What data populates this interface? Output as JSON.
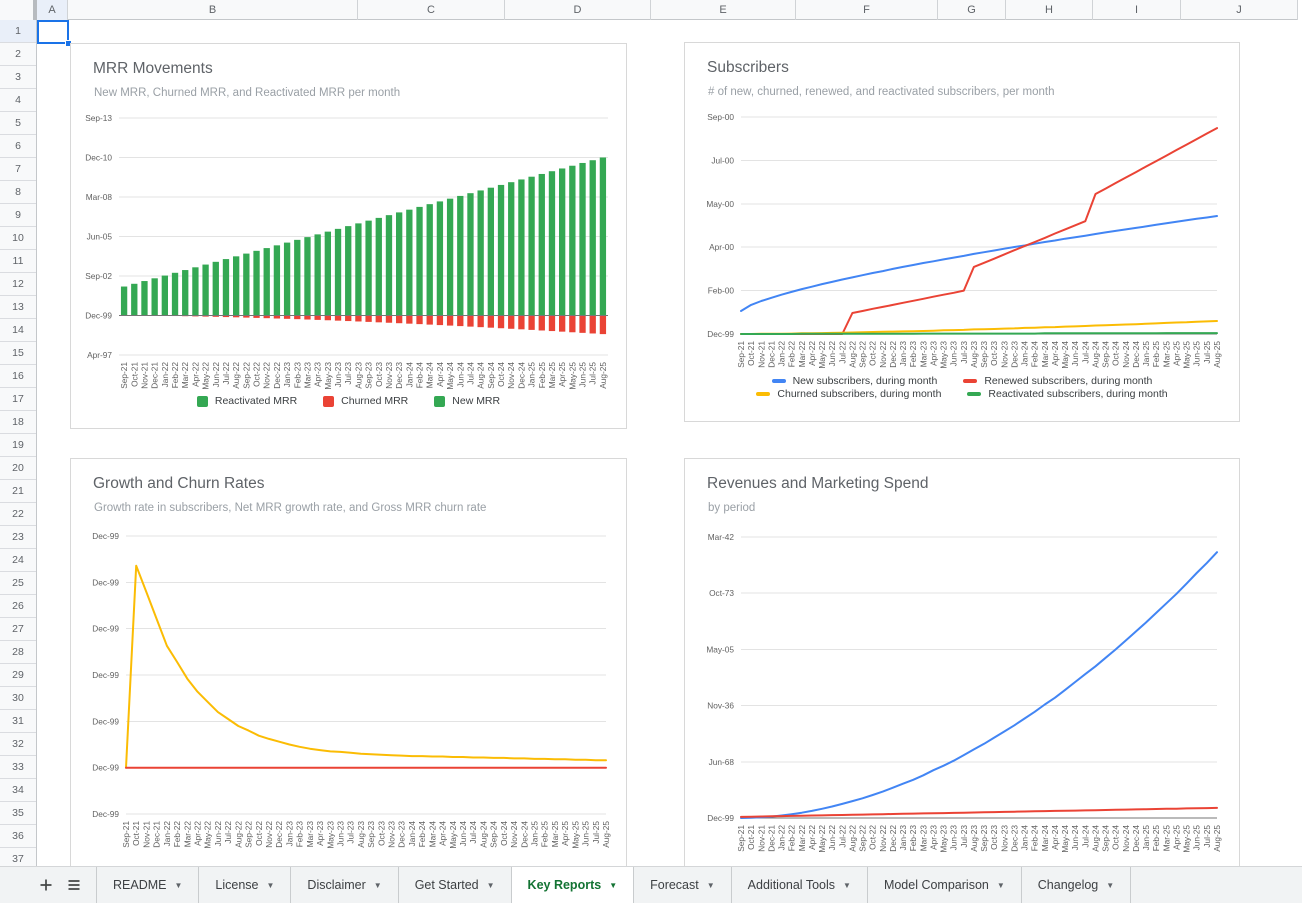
{
  "grid": {
    "column_headers": [
      "A",
      "B",
      "C",
      "D",
      "E",
      "F",
      "G",
      "H",
      "I",
      "J"
    ],
    "row_count": 37,
    "selected_cell": "A1"
  },
  "tab_bar": {
    "tabs": [
      {
        "label": "README",
        "active": false
      },
      {
        "label": "License",
        "active": false
      },
      {
        "label": "Disclaimer",
        "active": false
      },
      {
        "label": "Get Started",
        "active": false
      },
      {
        "label": "Key Reports",
        "active": true
      },
      {
        "label": "Forecast",
        "active": false
      },
      {
        "label": "Additional Tools",
        "active": false
      },
      {
        "label": "Model Comparison",
        "active": false
      },
      {
        "label": "Changelog",
        "active": false
      }
    ]
  },
  "colors": {
    "selection_blue": "#1a73e8",
    "series_blue": "#4285f4",
    "series_red": "#ea4335",
    "series_yellow": "#fbbc04",
    "series_green": "#34a853",
    "active_tab_green": "#137333"
  },
  "months": [
    "Sep-21",
    "Oct-21",
    "Nov-21",
    "Dec-21",
    "Jan-22",
    "Feb-22",
    "Mar-22",
    "Apr-22",
    "May-22",
    "Jun-22",
    "Jul-22",
    "Aug-22",
    "Sep-22",
    "Oct-22",
    "Nov-22",
    "Dec-22",
    "Jan-23",
    "Feb-23",
    "Mar-23",
    "Apr-23",
    "May-23",
    "Jun-23",
    "Jul-23",
    "Aug-23",
    "Sep-23",
    "Oct-23",
    "Nov-23",
    "Dec-23",
    "Jan-24",
    "Feb-24",
    "Mar-24",
    "Apr-24",
    "May-24",
    "Jun-24",
    "Jul-24",
    "Aug-24",
    "Sep-24",
    "Oct-24",
    "Nov-24",
    "Dec-24",
    "Jan-25",
    "Feb-25",
    "Mar-25",
    "Apr-25",
    "May-25",
    "Jun-25",
    "Jul-25",
    "Aug-25"
  ],
  "chart_data": [
    {
      "type": "bar",
      "stacked": true,
      "title": "MRR Movements",
      "subtitle": "New MRR, Churned MRR, and Reactivated MRR per month",
      "x_categories": "@months",
      "xlabel": "",
      "ylabel": "",
      "ylim": [
        -1800,
        9000
      ],
      "baseline_dark": true,
      "grid": true,
      "y_ticks": [
        {
          "label": "Sep-13",
          "value": 9000
        },
        {
          "label": "Dec-10",
          "value": 7200
        },
        {
          "label": "Mar-08",
          "value": 5400
        },
        {
          "label": "Jun-05",
          "value": 3600
        },
        {
          "label": "Sep-02",
          "value": 1800
        },
        {
          "label": "Dec-99",
          "value": 0
        },
        {
          "label": "Apr-97",
          "value": -1800
        }
      ],
      "series": [
        {
          "name": "Reactivated MRR",
          "color": "#34a853",
          "values": [
            0,
            0,
            0,
            0,
            0,
            0,
            0,
            0,
            0,
            0,
            0,
            0,
            0,
            0,
            0,
            0,
            0,
            0,
            0,
            0,
            0,
            0,
            0,
            0,
            0,
            0,
            0,
            0,
            0,
            0,
            0,
            0,
            0,
            0,
            0,
            0,
            0,
            0,
            0,
            0,
            0,
            0,
            0,
            0,
            0,
            0,
            0,
            0
          ]
        },
        {
          "name": "Churned MRR",
          "color": "#ea4335",
          "values": [
            0,
            -2,
            -5,
            -10,
            -17,
            -24,
            -32,
            -41,
            -50,
            -60,
            -72,
            -83,
            -96,
            -109,
            -122,
            -137,
            -152,
            -167,
            -183,
            -200,
            -217,
            -235,
            -253,
            -272,
            -291,
            -311,
            -330,
            -351,
            -372,
            -393,
            -415,
            -437,
            -460,
            -483,
            -507,
            -531,
            -555,
            -580,
            -605,
            -630,
            -656,
            -683,
            -709,
            -736,
            -764,
            -791,
            -819,
            -848
          ]
        },
        {
          "name": "New MRR",
          "color": "#34a853",
          "values": [
            1320,
            1445,
            1570,
            1695,
            1820,
            1946,
            2071,
            2196,
            2321,
            2446,
            2571,
            2696,
            2821,
            2947,
            3072,
            3197,
            3322,
            3447,
            3572,
            3697,
            3822,
            3948,
            4073,
            4198,
            4323,
            4448,
            4573,
            4698,
            4823,
            4949,
            5074,
            5199,
            5324,
            5449,
            5574,
            5699,
            5824,
            5950,
            6075,
            6200,
            6325,
            6450,
            6575,
            6700,
            6825,
            6951,
            7076,
            7200
          ]
        }
      ],
      "legend": {
        "visible": true,
        "position": "bottom",
        "swatch": "square",
        "rows": [
          [
            0,
            1,
            2
          ]
        ]
      }
    },
    {
      "type": "line",
      "title": "Subscribers",
      "subtitle": "# of new, churned, renewed, and reactivated subscribers, per month",
      "x_categories": "@months",
      "xlabel": "",
      "ylabel": "",
      "ylim": [
        0,
        1000
      ],
      "baseline_dark": true,
      "grid": true,
      "y_ticks": [
        {
          "label": "Sep-00",
          "value": 1000
        },
        {
          "label": "Jul-00",
          "value": 800
        },
        {
          "label": "May-00",
          "value": 600
        },
        {
          "label": "Apr-00",
          "value": 400
        },
        {
          "label": "Feb-00",
          "value": 200
        },
        {
          "label": "Dec-99",
          "value": 0
        }
      ],
      "series": [
        {
          "name": "New subscribers, during month",
          "color": "#4285f4",
          "values": [
            106,
            134,
            152,
            167,
            181,
            194,
            207,
            218,
            230,
            240,
            251,
            261,
            271,
            281,
            290,
            300,
            309,
            318,
            327,
            335,
            344,
            352,
            360,
            369,
            377,
            385,
            393,
            401,
            408,
            416,
            424,
            431,
            439,
            446,
            453,
            461,
            468,
            475,
            482,
            489,
            496,
            503,
            510,
            517,
            524,
            531,
            537,
            544
          ]
        },
        {
          "name": "Renewed subscribers, during month",
          "color": "#ea4335",
          "values": [
            0,
            0,
            0,
            0,
            0,
            0,
            0,
            0,
            0,
            0,
            0,
            97,
            106,
            116,
            125,
            134,
            144,
            153,
            162,
            172,
            181,
            190,
            200,
            309,
            328,
            347,
            367,
            386,
            405,
            424,
            443,
            463,
            482,
            501,
            520,
            645,
            670,
            696,
            721,
            746,
            772,
            797,
            822,
            848,
            873,
            898,
            924,
            949
          ]
        },
        {
          "name": "Churned subscribers, during month",
          "color": "#fbbc04",
          "values": [
            0,
            0,
            1,
            1,
            1,
            2,
            3,
            3,
            4,
            5,
            6,
            7,
            8,
            9,
            10,
            11,
            12,
            13,
            14,
            15,
            17,
            18,
            19,
            21,
            22,
            23,
            25,
            26,
            28,
            29,
            31,
            32,
            34,
            35,
            37,
            39,
            40,
            42,
            44,
            45,
            47,
            49,
            51,
            53,
            54,
            56,
            58,
            60
          ]
        },
        {
          "name": "Reactivated subscribers, during month",
          "color": "#34a853",
          "values": [
            0,
            0,
            0,
            0,
            0,
            0,
            1,
            1,
            1,
            1,
            1,
            1,
            1,
            1,
            1,
            1,
            1,
            1,
            2,
            2,
            2,
            2,
            2,
            2,
            2,
            2,
            2,
            2,
            2,
            2,
            3,
            3,
            3,
            3,
            3,
            3,
            3,
            3,
            3,
            3,
            3,
            3,
            4,
            4,
            4,
            4,
            4,
            4
          ]
        }
      ],
      "legend": {
        "visible": true,
        "position": "bottom",
        "swatch": "line",
        "rows": [
          [
            0,
            1
          ],
          [
            2,
            3
          ]
        ]
      }
    },
    {
      "type": "line",
      "title": "Growth and Churn Rates",
      "subtitle": "Growth rate in subscribers, Net MRR growth rate, and Gross MRR churn rate",
      "x_categories": "@months",
      "xlabel": "",
      "ylabel": "",
      "ylim": [
        0,
        0.6
      ],
      "baseline_dark": false,
      "grid": true,
      "y_ticks": [
        {
          "label": "Dec-99",
          "value": 0.6
        },
        {
          "label": "Dec-99",
          "value": 0.5
        },
        {
          "label": "Dec-99",
          "value": 0.4
        },
        {
          "label": "Dec-99",
          "value": 0.3
        },
        {
          "label": "Dec-99",
          "value": 0.2
        },
        {
          "label": "Dec-99",
          "value": 0.1
        },
        {
          "label": "Dec-99",
          "value": 0
        }
      ],
      "series": [
        {
          "name": "Growth rate in subscribers",
          "color": "#fbbc04",
          "values": [
            0.1,
            0.536,
            0.479,
            0.421,
            0.363,
            0.328,
            0.292,
            0.264,
            0.242,
            0.22,
            0.205,
            0.19,
            0.18,
            0.169,
            0.162,
            0.156,
            0.15,
            0.145,
            0.141,
            0.138,
            0.135,
            0.134,
            0.132,
            0.13,
            0.129,
            0.128,
            0.127,
            0.126,
            0.125,
            0.125,
            0.124,
            0.124,
            0.123,
            0.123,
            0.122,
            0.122,
            0.121,
            0.121,
            0.12,
            0.12,
            0.119,
            0.119,
            0.118,
            0.118,
            0.117,
            0.117,
            0.116,
            0.116
          ]
        },
        {
          "name": "Gross MRR churn rate",
          "color": "#ea4335",
          "values": [
            0.1,
            0.1,
            0.1,
            0.1,
            0.1,
            0.1,
            0.1,
            0.1,
            0.1,
            0.1,
            0.1,
            0.1,
            0.1,
            0.1,
            0.1,
            0.1,
            0.1,
            0.1,
            0.1,
            0.1,
            0.1,
            0.1,
            0.1,
            0.1,
            0.1,
            0.1,
            0.1,
            0.1,
            0.1,
            0.1,
            0.1,
            0.1,
            0.1,
            0.1,
            0.1,
            0.1,
            0.1,
            0.1,
            0.1,
            0.1,
            0.1,
            0.1,
            0.1,
            0.1,
            0.1,
            0.1,
            0.1,
            0.1
          ]
        }
      ],
      "legend": {
        "visible": false,
        "position": "bottom",
        "rows": []
      }
    },
    {
      "type": "line",
      "title": "Revenues and Marketing Spend",
      "subtitle": "by period",
      "x_categories": "@months",
      "xlabel": "",
      "ylabel": "",
      "ylim": [
        0,
        500
      ],
      "baseline_dark": true,
      "grid": true,
      "y_ticks": [
        {
          "label": "Mar-42",
          "value": 500
        },
        {
          "label": "Oct-73",
          "value": 400
        },
        {
          "label": "May-05",
          "value": 300
        },
        {
          "label": "Nov-36",
          "value": 200
        },
        {
          "label": "Jun-68",
          "value": 100
        },
        {
          "label": "Dec-99",
          "value": 0
        }
      ],
      "series": [
        {
          "name": "Revenues",
          "color": "#4285f4",
          "values": [
            0,
            0.3,
            1.2,
            2.5,
            4.4,
            6.7,
            9.5,
            12.7,
            16.4,
            20.4,
            25,
            30,
            35,
            41,
            47,
            54,
            61,
            68,
            76,
            85,
            93,
            102,
            112,
            122,
            132,
            143,
            154,
            165,
            177,
            189,
            202,
            214,
            228,
            242,
            256,
            270,
            285,
            300,
            316,
            332,
            348,
            365,
            382,
            399,
            417,
            436,
            454,
            473
          ]
        },
        {
          "name": "Marketing spend",
          "color": "#ea4335",
          "values": [
            2,
            2.3,
            2.7,
            3,
            3.4,
            3.7,
            4,
            4.4,
            4.7,
            5.1,
            5.4,
            5.7,
            6.1,
            6.4,
            6.8,
            7.1,
            7.4,
            7.8,
            8.1,
            8.5,
            8.8,
            9.1,
            9.5,
            9.8,
            10.2,
            10.5,
            10.9,
            11.2,
            11.5,
            11.9,
            12.2,
            12.6,
            12.9,
            13.2,
            13.6,
            13.9,
            14.3,
            14.6,
            14.9,
            15.3,
            15.6,
            16,
            16.3,
            16.6,
            17,
            17.3,
            17.7,
            18
          ]
        }
      ],
      "legend": {
        "visible": false,
        "position": "bottom",
        "rows": []
      }
    }
  ]
}
